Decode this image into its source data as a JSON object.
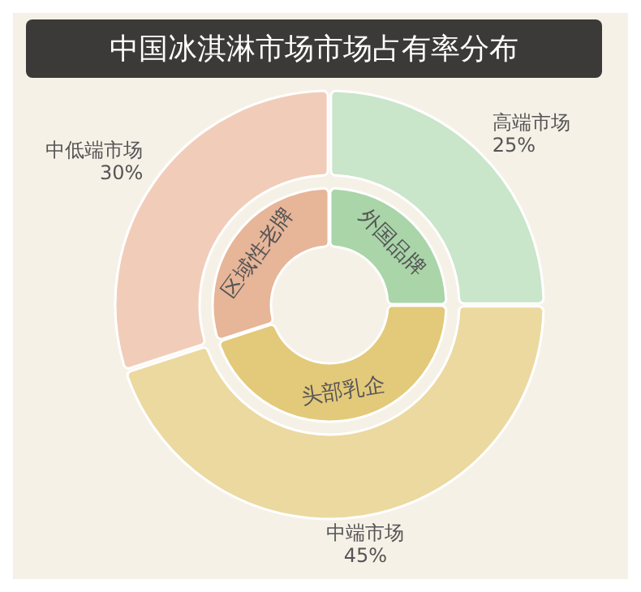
{
  "chart_data": [
    {
      "type": "donut",
      "title": "中国冰淇淋市场市场占有率分布",
      "categories": [
        "高端市场",
        "中端市场",
        "中低端市场"
      ],
      "values": [
        25,
        45,
        30
      ],
      "value_labels": [
        "25%",
        "45%",
        "30%"
      ],
      "colors": [
        "#c9e5ca",
        "#ebd9a0",
        "#f1cdb9"
      ]
    },
    {
      "type": "donut",
      "categories": [
        "外国品牌",
        "头部乳企",
        "区域性老牌"
      ],
      "values": [
        25,
        45,
        30
      ],
      "colors": [
        "#a9d5a9",
        "#e3c97a",
        "#e7b598"
      ]
    }
  ]
}
